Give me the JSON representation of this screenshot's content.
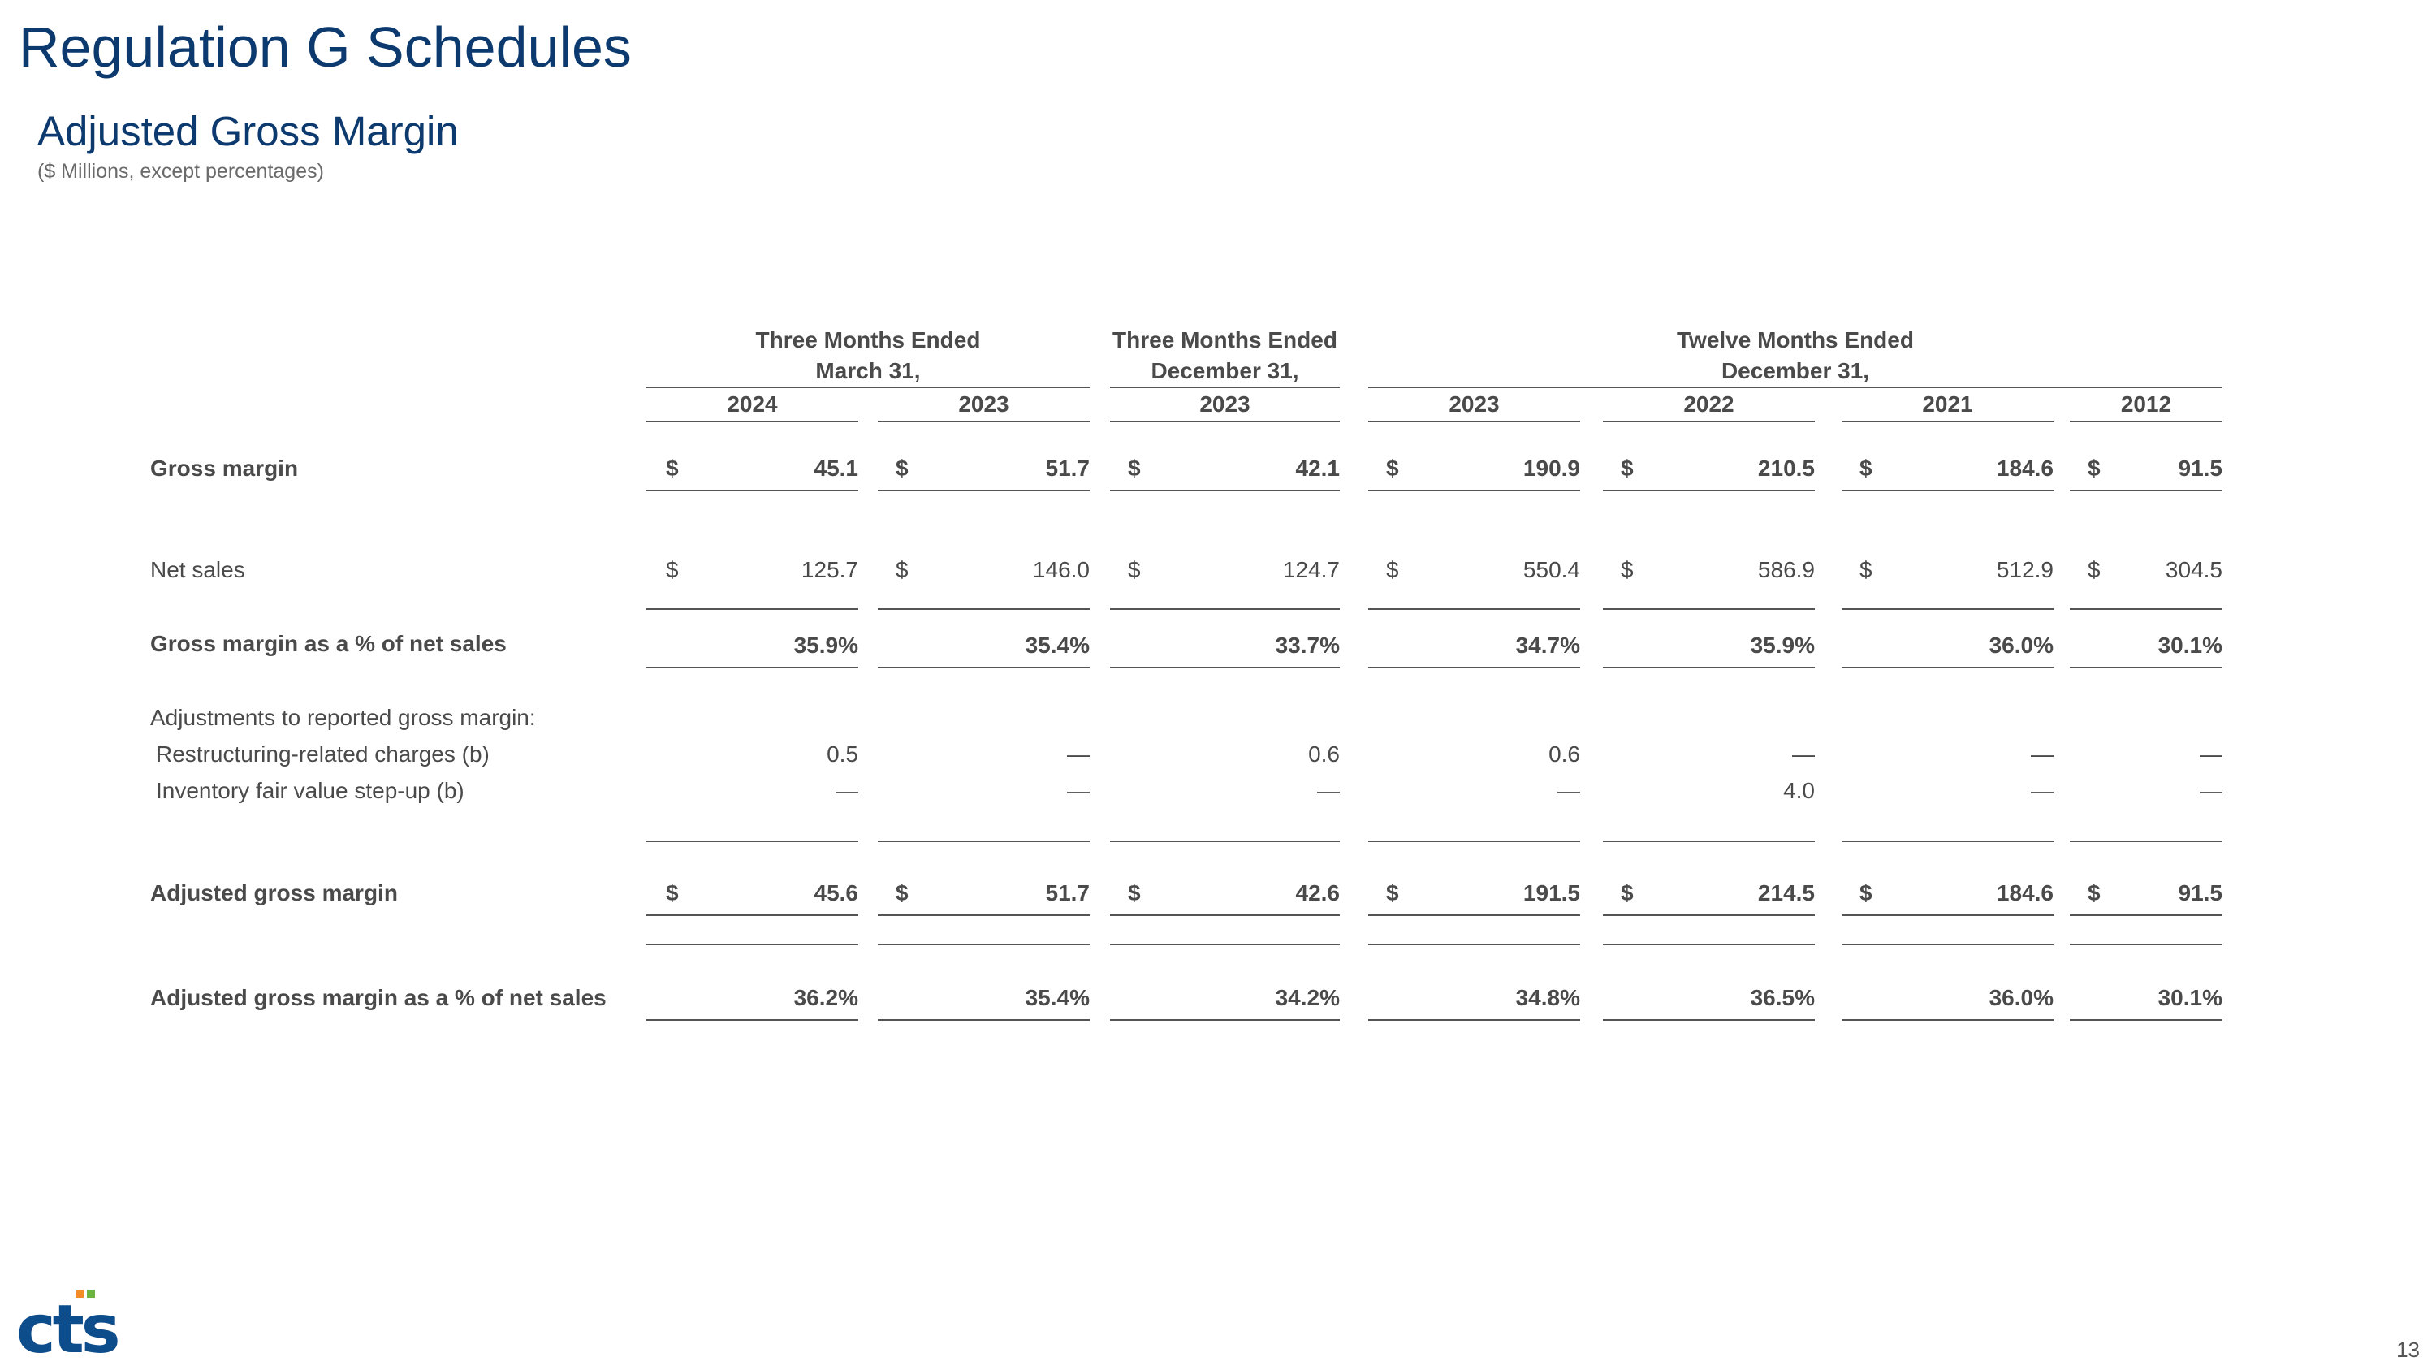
{
  "page": {
    "title": "Regulation G Schedules",
    "subtitle": "Adjusted Gross Margin",
    "units": "($ Millions, except percentages)",
    "page_number": "13",
    "logo_text": "cts"
  },
  "headers": {
    "group1": [
      "Three Months Ended",
      "March 31,"
    ],
    "group2": [
      "Three Months Ended",
      "December 31,"
    ],
    "group3": [
      "Twelve Months Ended",
      "December 31,"
    ],
    "years": [
      "2024",
      "2023",
      "2023",
      "2023",
      "2022",
      "2021",
      "2012"
    ]
  },
  "rows": [
    {
      "label": "Gross margin",
      "bold": true,
      "currency": "$",
      "values": [
        "45.1",
        "51.7",
        "42.1",
        "190.9",
        "210.5",
        "184.6",
        "91.5"
      ]
    },
    {
      "label": "Net sales",
      "bold": false,
      "currency": "$",
      "values": [
        "125.7",
        "146.0",
        "124.7",
        "550.4",
        "586.9",
        "512.9",
        "304.5"
      ]
    },
    {
      "label": "Gross margin as a % of net sales",
      "bold": true,
      "currency": "",
      "values": [
        "35.9%",
        "35.4%",
        "33.7%",
        "34.7%",
        "35.9%",
        "36.0%",
        "30.1%"
      ]
    },
    {
      "label": "Adjustments to reported gross margin:",
      "bold": false,
      "currency": "",
      "values": [
        "",
        "",
        "",
        "",
        "",
        "",
        ""
      ]
    },
    {
      "label": "Restructuring-related charges (b)",
      "bold": false,
      "currency": "",
      "values": [
        "0.5",
        "—",
        "0.6",
        "0.6",
        "—",
        "—",
        "—"
      ]
    },
    {
      "label": "Inventory fair value step-up (b)",
      "bold": false,
      "currency": "",
      "values": [
        "—",
        "—",
        "—",
        "—",
        "4.0",
        "—",
        "—"
      ]
    },
    {
      "label": "Adjusted gross margin",
      "bold": true,
      "currency": "$",
      "values": [
        "45.6",
        "51.7",
        "42.6",
        "191.5",
        "214.5",
        "184.6",
        "91.5"
      ]
    },
    {
      "label": "Adjusted gross margin as a % of net sales",
      "bold": true,
      "currency": "",
      "values": [
        "36.2%",
        "35.4%",
        "34.2%",
        "34.8%",
        "36.5%",
        "36.0%",
        "30.1%"
      ]
    }
  ],
  "colors": {
    "title": "#0d3a6e",
    "text": "#4a4a4a",
    "logo_blue": "#0d4d8c",
    "logo_orange": "#f28c28",
    "logo_green": "#6cb33f"
  }
}
